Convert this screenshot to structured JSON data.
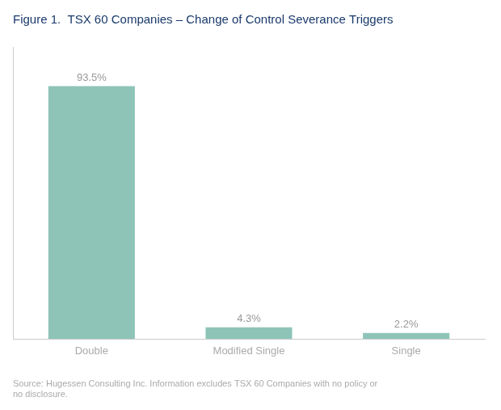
{
  "chart_data": {
    "type": "bar",
    "title": "Figure 1.  TSX 60 Companies – Change of Control Severance Triggers",
    "categories": [
      "Double",
      "Modified Single",
      "Single"
    ],
    "values": [
      93.5,
      4.3,
      2.2
    ],
    "value_labels": [
      "93.5%",
      "4.3%",
      "2.2%"
    ],
    "data_labels": true,
    "color": "#8ec4b8",
    "ylim": [
      0,
      108
    ],
    "tick_labels": "x",
    "grid": false,
    "annotations": [
      "Source: Hugessen Consulting Inc. Information excludes TSX 60 Companies with no policy or\nno disclosure."
    ]
  }
}
